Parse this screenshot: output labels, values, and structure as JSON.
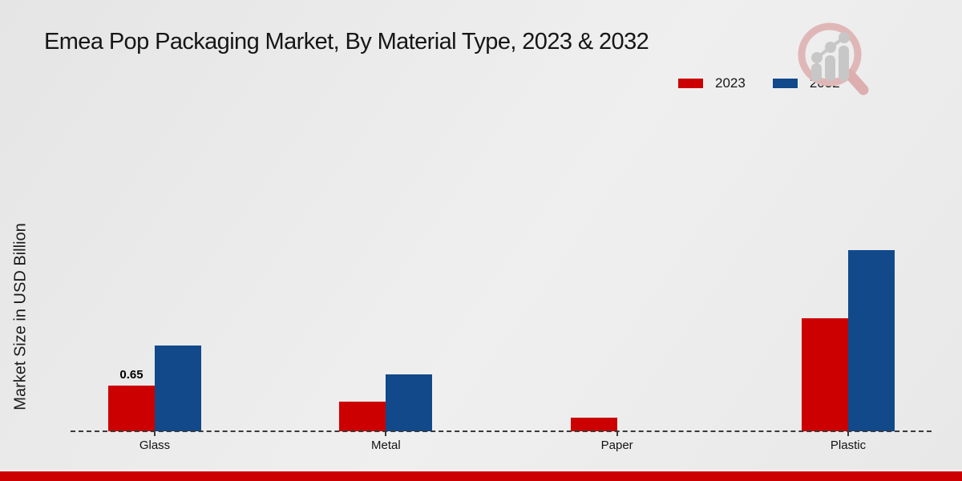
{
  "title": "Emea Pop Packaging Market, By Material Type, 2023 & 2032",
  "y_axis_label": "Market Size in USD Billion",
  "colors": {
    "series_2023": "#cc0000",
    "series_2032": "#11498b",
    "footer_strip": "#cc0000",
    "baseline": "#3a3a3a"
  },
  "legend": {
    "position": "top-right",
    "items": [
      {
        "label": "2023",
        "color": "#cc0000"
      },
      {
        "label": "2032",
        "color": "#11498b"
      }
    ]
  },
  "watermark": {
    "name": "market-research-magnifier-logo"
  },
  "chart_data": {
    "type": "bar",
    "title": "Emea Pop Packaging Market, By Material Type, 2023 & 2032",
    "xlabel": "",
    "ylabel": "Market Size in USD Billion",
    "categories": [
      "Glass",
      "Metal",
      "Paper",
      "Plastic"
    ],
    "series": [
      {
        "name": "2023",
        "color": "#cc0000",
        "values": [
          0.65,
          0.42,
          0.19,
          1.61
        ]
      },
      {
        "name": "2032",
        "color": "#11498b",
        "values": [
          1.22,
          0.81,
          0,
          2.58
        ]
      }
    ],
    "data_labels": [
      {
        "category": "Glass",
        "series": "2023",
        "text": "0.65"
      }
    ],
    "ylim": [
      0,
      3
    ],
    "grid": false,
    "axis_style": "dashed-baseline-only",
    "legend_position": "top-right"
  }
}
